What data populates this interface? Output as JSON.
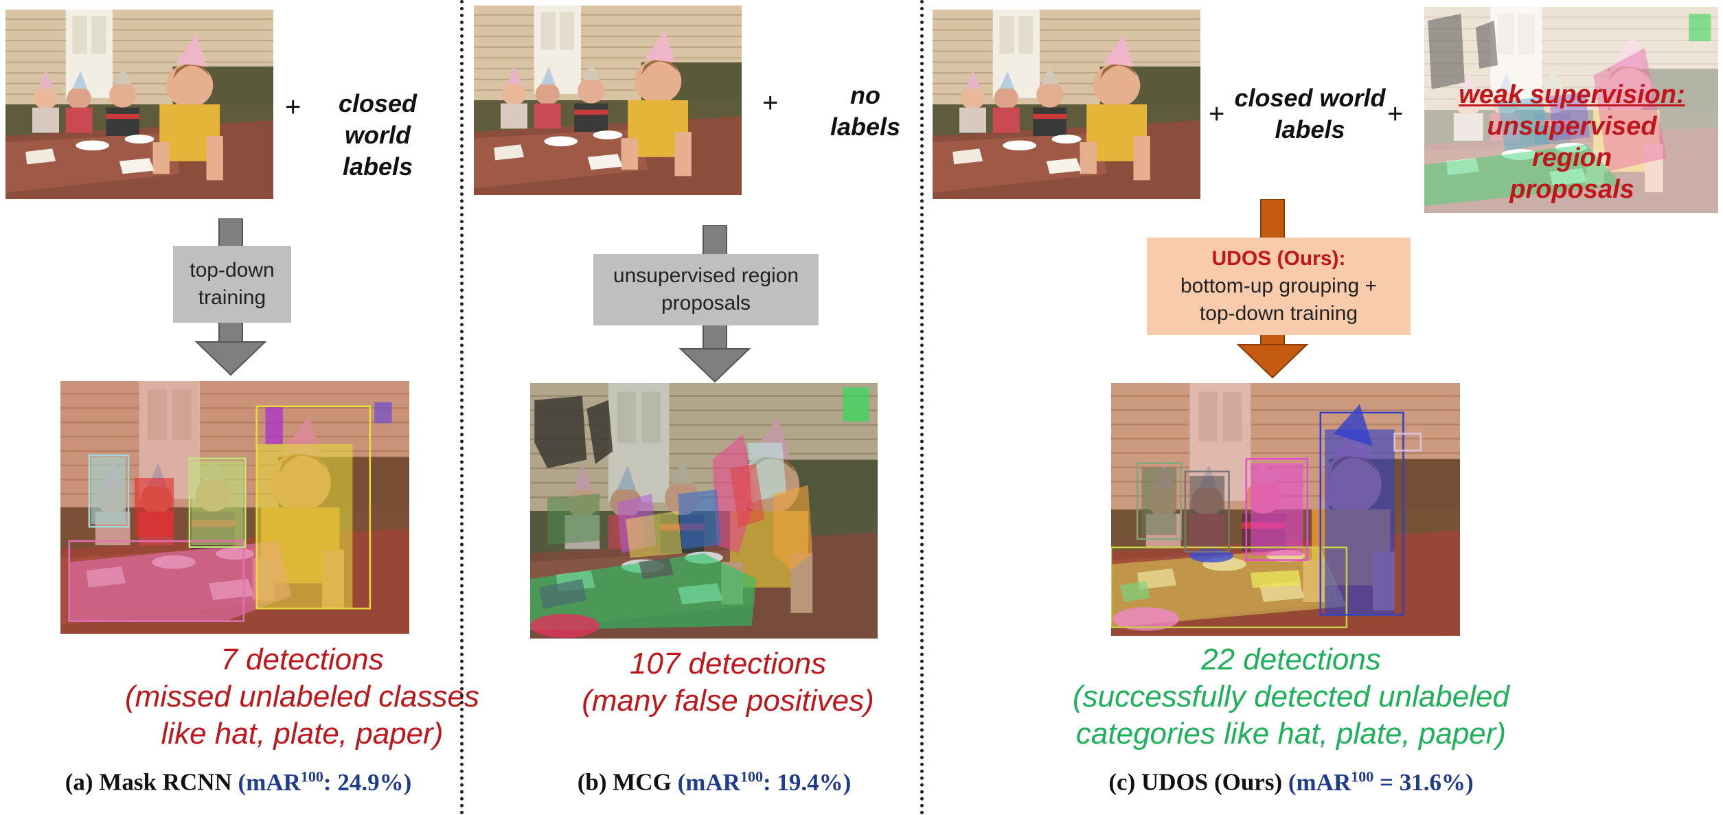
{
  "colors": {
    "red_text": "#c0161b",
    "green_text": "#1db15a",
    "metric_blue": "#1f3b8c",
    "gray_arrow": "#7f7f7f",
    "gray_box": "#bfbfbf",
    "orange_arrow": "#c55a11",
    "orange_box": "#f8cbad"
  },
  "panel_a": {
    "plus": "+",
    "labels_line1": "closed world",
    "labels_line2": "labels",
    "box_line1": "top-down",
    "box_line2": "training",
    "result_line1": "7 detections",
    "result_line2": "(missed unlabeled classes",
    "result_line3": "like hat, plate, paper)",
    "caption_name": "(a) Mask RCNN",
    "caption_metric_open": "(mAR",
    "caption_sup": "100",
    "caption_metric_close": ": 24.9%)"
  },
  "panel_b": {
    "plus": "+",
    "labels_line1": "no",
    "labels_line2": "labels",
    "box_line1": "unsupervised region",
    "box_line2": "proposals",
    "result_line1": "107 detections",
    "result_line2": "(many false positives)",
    "caption_name": "(b) MCG",
    "caption_metric_open": "(mAR",
    "caption_sup": "100",
    "caption_metric_close": ": 19.4%)"
  },
  "panel_c": {
    "plus1": "+",
    "labels_line1": "closed world",
    "labels_line2": "labels",
    "plus2": "+",
    "weak_line1": "weak supervision:",
    "weak_line2": "unsupervised region",
    "weak_line3": "proposals",
    "box_title": "UDOS (Ours):",
    "box_line1": "bottom-up grouping +",
    "box_line2": "top-down training",
    "result_line1": "22 detections",
    "result_line2": "(successfully detected unlabeled",
    "result_line3": "categories like hat, plate, paper)",
    "caption_name": "(c) UDOS (Ours)",
    "caption_metric_open": "(mAR",
    "caption_sup": "100",
    "caption_metric_close": " = 31.6%)"
  }
}
